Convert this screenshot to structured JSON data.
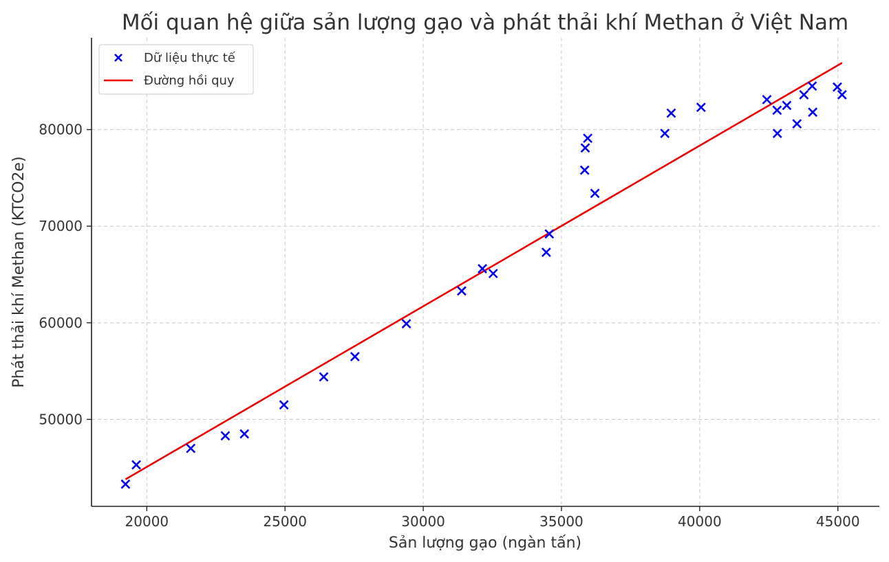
{
  "colors": {
    "points": "#0000ee",
    "line": "#ee0000",
    "grid": "#c8c8c8",
    "text": "#333333"
  },
  "chart_data": {
    "type": "scatter",
    "title": "Mối quan hệ giữa sản lượng gạo và phát thải khí Methan ở Việt Nam",
    "xlabel": "Sản lượng gạo (ngàn tấn)",
    "ylabel": "Phát thải khí Methan (KTCO2e)",
    "xlim": [
      18000,
      46500
    ],
    "ylim": [
      41000,
      89500
    ],
    "xticks": [
      20000,
      25000,
      30000,
      35000,
      40000,
      45000
    ],
    "yticks": [
      50000,
      60000,
      70000,
      80000
    ],
    "grid": true,
    "legend_position": "top-left",
    "series": [
      {
        "name": "Dữ liệu thực tế",
        "marker": "x",
        "x": [
          19230,
          19620,
          21590,
          22840,
          23530,
          24960,
          26400,
          27530,
          29390,
          31390,
          32140,
          32530,
          34450,
          34560,
          35840,
          35860,
          35950,
          36210,
          38740,
          38970,
          40050,
          42430,
          42810,
          42800,
          43150,
          43520,
          43770,
          44070,
          44090,
          44980,
          45150
        ],
        "y": [
          43300,
          45300,
          47000,
          48300,
          48500,
          51500,
          54400,
          56500,
          59900,
          63300,
          65600,
          65100,
          67300,
          69200,
          75800,
          78100,
          79100,
          73400,
          79600,
          81700,
          82300,
          83100,
          79600,
          82000,
          82500,
          80600,
          83600,
          84500,
          81800,
          84400,
          83600
        ]
      },
      {
        "name": "Đường hồi quy",
        "type": "line",
        "x": [
          19230,
          45150
        ],
        "y": [
          43800,
          86900
        ]
      }
    ]
  }
}
